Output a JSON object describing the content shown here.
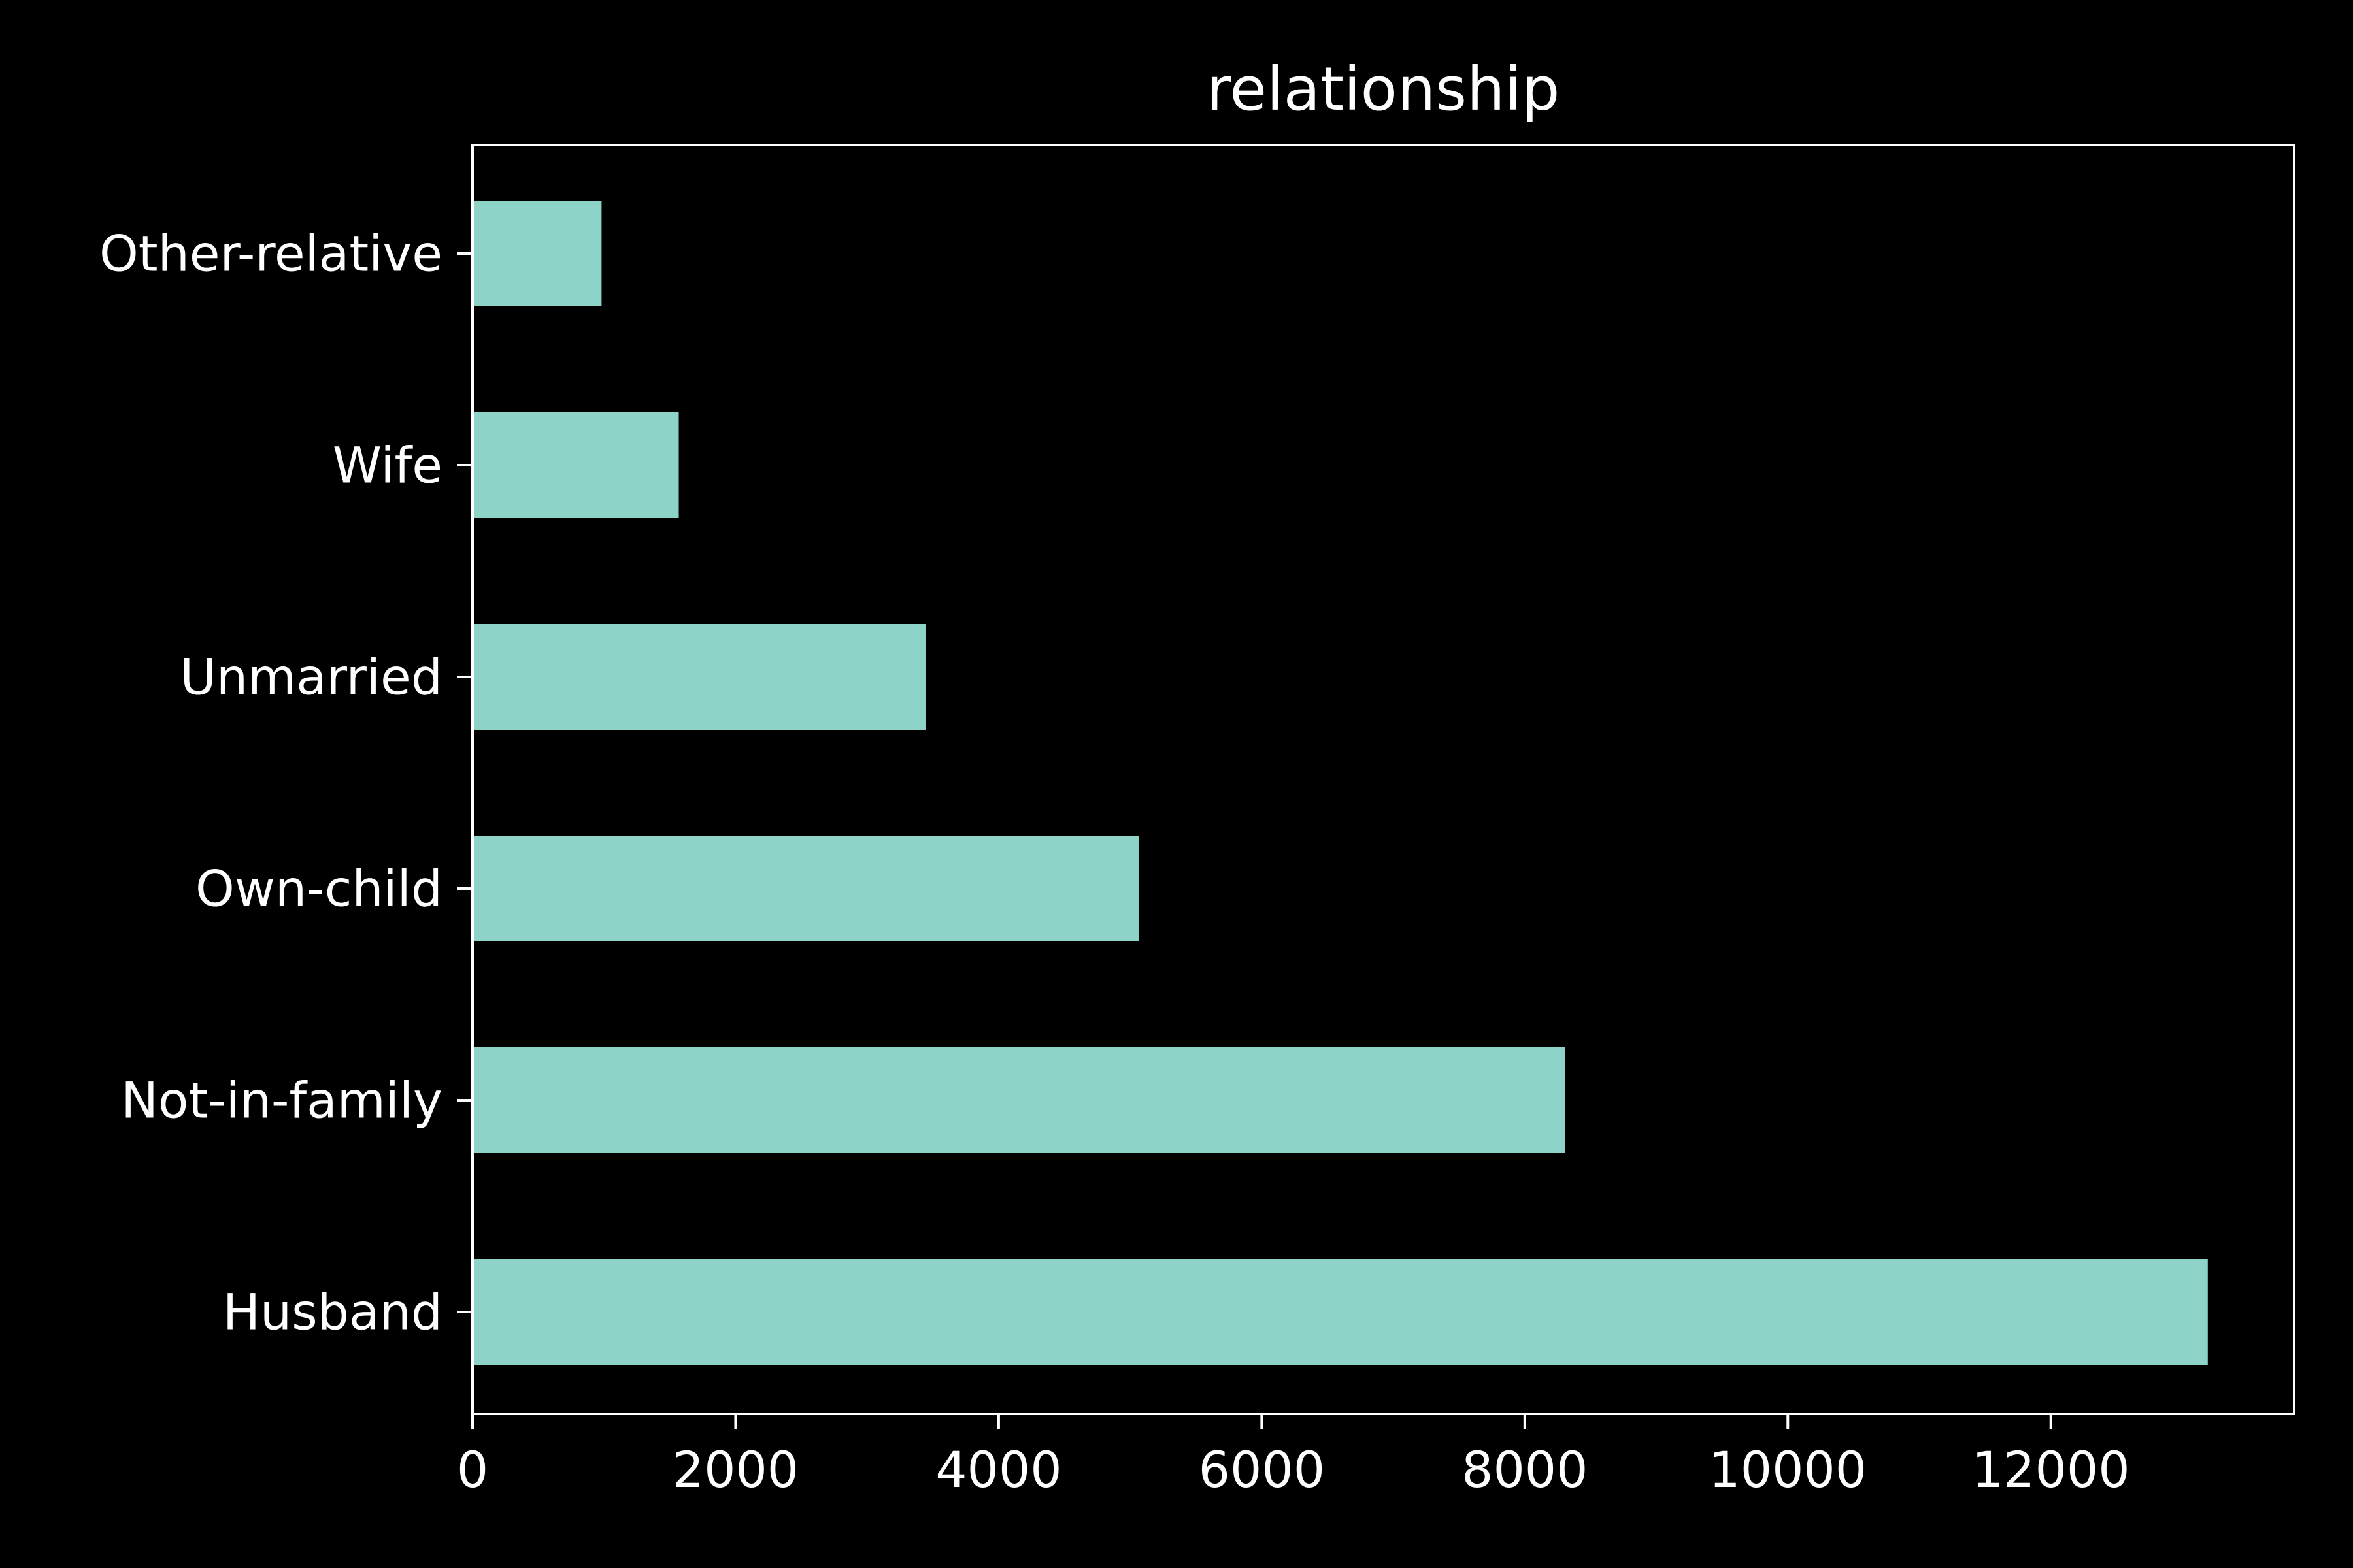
{
  "chart_data": {
    "type": "bar",
    "orientation": "horizontal",
    "title": "relationship",
    "xlabel": "",
    "ylabel": "",
    "categories": [
      "Husband",
      "Not-in-family",
      "Own-child",
      "Unmarried",
      "Wife",
      "Other-relative"
    ],
    "values": [
      13193,
      8305,
      5068,
      3446,
      1568,
      981
    ],
    "xlim": [
      0,
      13850
    ],
    "xticks": [
      0,
      2000,
      4000,
      6000,
      8000,
      10000,
      12000
    ],
    "xtick_labels": [
      "0",
      "2000",
      "4000",
      "6000",
      "8000",
      "10000",
      "12000"
    ],
    "grid": false,
    "legend": "none"
  },
  "colors": {
    "background": "#000000",
    "bar": "#8dd3c7",
    "axes": "#ffffff",
    "text": "#ffffff"
  }
}
